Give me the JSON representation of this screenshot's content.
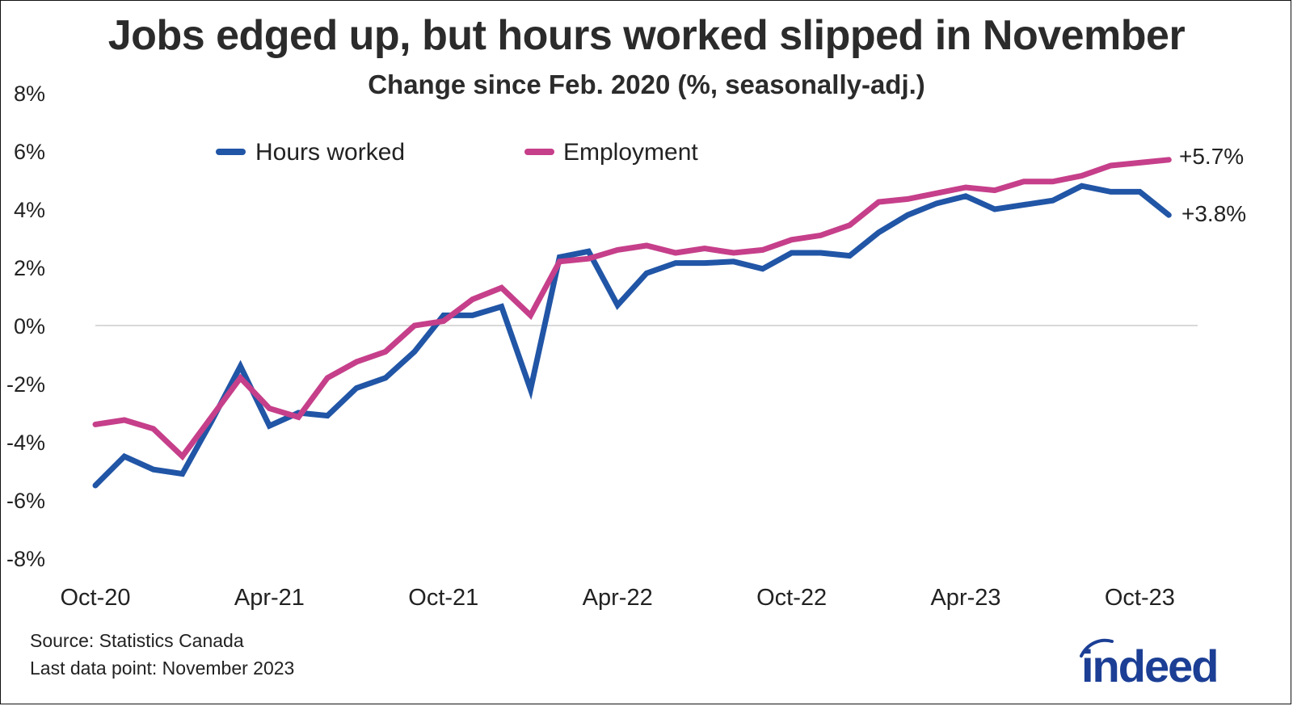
{
  "header": {
    "title": "Jobs edged up, but hours worked slipped in November",
    "subtitle": "Change since Feb. 2020 (%, seasonally-adj.)"
  },
  "legend": {
    "items": [
      {
        "label": "Hours worked",
        "color": "#2155a6"
      },
      {
        "label": "Employment",
        "color": "#c63f8a"
      }
    ]
  },
  "annotations": {
    "employment_end": "+5.7%",
    "hours_end": "+3.8%"
  },
  "footer": {
    "source": "Source: Statistics Canada",
    "last_point": "Last data point: November 2023"
  },
  "logo": {
    "text": "indeed",
    "color": "#1c3f95"
  },
  "chart_data": {
    "type": "line",
    "title": "Jobs edged up, but hours worked slipped in November",
    "subtitle": "Change since Feb. 2020 (%, seasonally-adj.)",
    "xlabel": "",
    "ylabel": "",
    "ylim": [
      -8,
      8
    ],
    "yticks": [
      "8%",
      "6%",
      "4%",
      "2%",
      "0%",
      "-2%",
      "-4%",
      "-6%",
      "-8%"
    ],
    "ytick_values": [
      8,
      6,
      4,
      2,
      0,
      -2,
      -4,
      -6,
      -8
    ],
    "xticks": [
      "Oct-20",
      "Apr-21",
      "Oct-21",
      "Apr-22",
      "Oct-22",
      "Apr-23",
      "Oct-23"
    ],
    "xtick_indices": [
      0,
      6,
      12,
      18,
      24,
      30,
      36
    ],
    "grid": "zero line only",
    "legend_position": "top-left inside plot",
    "x": [
      "Oct-20",
      "Nov-20",
      "Dec-20",
      "Jan-21",
      "Feb-21",
      "Mar-21",
      "Apr-21",
      "May-21",
      "Jun-21",
      "Jul-21",
      "Aug-21",
      "Sep-21",
      "Oct-21",
      "Nov-21",
      "Dec-21",
      "Jan-22",
      "Feb-22",
      "Mar-22",
      "Apr-22",
      "May-22",
      "Jun-22",
      "Jul-22",
      "Aug-22",
      "Sep-22",
      "Oct-22",
      "Nov-22",
      "Dec-22",
      "Jan-23",
      "Feb-23",
      "Mar-23",
      "Apr-23",
      "May-23",
      "Jun-23",
      "Jul-23",
      "Aug-23",
      "Sep-23",
      "Oct-23",
      "Nov-23"
    ],
    "series": [
      {
        "name": "Hours worked",
        "color": "#2155a6",
        "values": [
          -5.5,
          -4.5,
          -4.95,
          -5.1,
          -3.3,
          -1.4,
          -3.45,
          -3.0,
          -3.1,
          -2.15,
          -1.8,
          -0.9,
          0.35,
          0.35,
          0.65,
          -2.2,
          2.35,
          2.55,
          0.7,
          1.8,
          2.15,
          2.15,
          2.2,
          1.95,
          2.5,
          2.5,
          2.4,
          3.2,
          3.8,
          4.2,
          4.45,
          4.0,
          4.15,
          4.3,
          4.8,
          4.6,
          4.6,
          3.8
        ]
      },
      {
        "name": "Employment",
        "color": "#c63f8a",
        "values": [
          -3.4,
          -3.25,
          -3.55,
          -4.5,
          -3.15,
          -1.8,
          -2.85,
          -3.15,
          -1.8,
          -1.25,
          -0.9,
          0.0,
          0.15,
          0.9,
          1.3,
          0.35,
          2.2,
          2.3,
          2.6,
          2.75,
          2.5,
          2.65,
          2.5,
          2.6,
          2.95,
          3.1,
          3.45,
          4.25,
          4.35,
          4.55,
          4.75,
          4.65,
          4.95,
          4.95,
          5.15,
          5.5,
          5.6,
          5.7
        ]
      }
    ],
    "end_labels": {
      "Employment": "+5.7%",
      "Hours worked": "+3.8%"
    }
  }
}
